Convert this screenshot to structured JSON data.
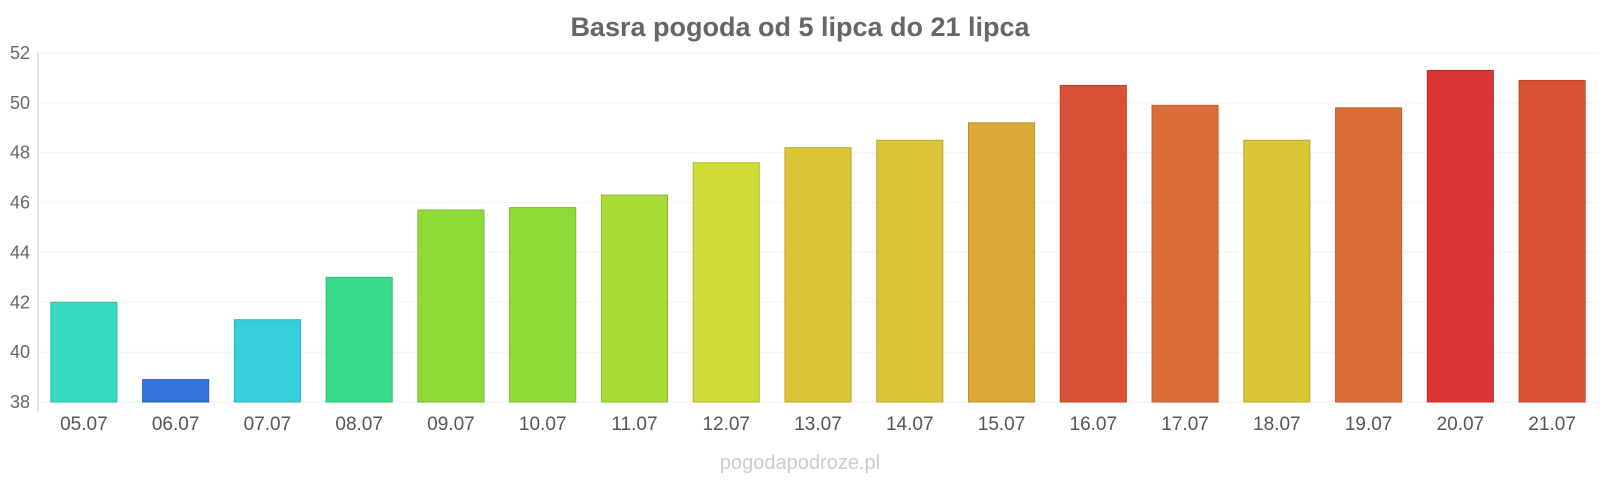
{
  "chart_data": {
    "type": "bar",
    "title": "Basra pogoda od 5 lipca do 21 lipca",
    "categories": [
      "05.07",
      "06.07",
      "07.07",
      "08.07",
      "09.07",
      "10.07",
      "11.07",
      "12.07",
      "13.07",
      "14.07",
      "15.07",
      "16.07",
      "17.07",
      "18.07",
      "19.07",
      "20.07",
      "21.07"
    ],
    "values": [
      42.0,
      38.9,
      41.3,
      43.0,
      45.7,
      45.8,
      46.3,
      47.6,
      48.2,
      48.5,
      49.2,
      50.7,
      49.9,
      48.5,
      49.8,
      51.3,
      50.9
    ],
    "colors": [
      "#36dbbf",
      "#3375dc",
      "#36cfdb",
      "#36db8b",
      "#8cdb36",
      "#8cdb36",
      "#a9db36",
      "#cfdb36",
      "#dbc436",
      "#dbc436",
      "#dba936",
      "#db5136",
      "#db6e36",
      "#dbc436",
      "#db6e36",
      "#db3636",
      "#db5136"
    ],
    "yticks": [
      38,
      40,
      42,
      44,
      46,
      48,
      50,
      52
    ],
    "ylim": [
      38,
      52
    ],
    "grid": true,
    "legend": "none"
  },
  "credit": "pogodapodroze.pl"
}
